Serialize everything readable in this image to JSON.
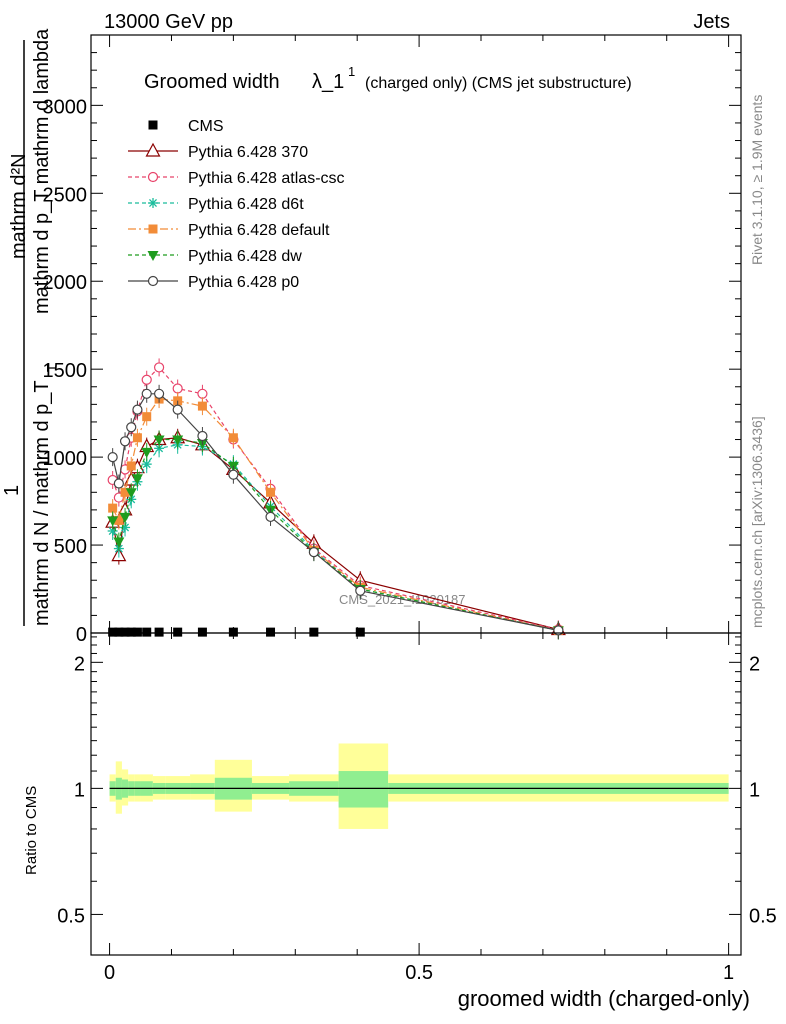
{
  "header": {
    "left": "13000 GeV pp",
    "right": "Jets"
  },
  "side": {
    "rivet": "Rivet 3.1.10, ≥ 1.9M events",
    "mcplots": "mcplots.cern.ch [arXiv:1306.3436]"
  },
  "chart_data": [
    {
      "type": "line",
      "title_main": "Groomed width",
      "title_lambda": "λ_1",
      "title_sup": "1",
      "title_tail": "(charged only) (CMS jet substructure)",
      "ylabel_top": "mathrm d²N",
      "ylabel_mid": "mathrm d p_T mathrm d lambda",
      "ylabel_one": "1",
      "ylabel_bottom": "mathrm d N / mathrm d p_T",
      "ylabel_t": "T",
      "watermark": "CMS_2021_I1920187",
      "xlim": [
        -0.03,
        1.02
      ],
      "ylim": [
        0,
        3400
      ],
      "yticks": [
        {
          "v": 0,
          "label": "0"
        },
        {
          "v": 500,
          "label": "500"
        },
        {
          "v": 1000,
          "label": "1000"
        },
        {
          "v": 1500,
          "label": "1500"
        },
        {
          "v": 2000,
          "label": "2000"
        },
        {
          "v": 2500,
          "label": "2500"
        },
        {
          "v": 3000,
          "label": "3000"
        }
      ],
      "x": [
        0.005,
        0.015,
        0.025,
        0.035,
        0.045,
        0.06,
        0.08,
        0.11,
        0.15,
        0.2,
        0.26,
        0.33,
        0.405,
        0.725
      ],
      "legend_position": "top-left",
      "series": [
        {
          "name": "CMS",
          "color": "#000000",
          "marker": "square",
          "dash": "",
          "values": [
            5,
            5,
            5,
            5,
            5,
            5,
            5,
            5,
            5,
            5,
            5,
            5,
            5,
            null
          ]
        },
        {
          "name": "Pythia 6.428 370",
          "color": "#8b0000",
          "marker": "triangle-open",
          "dash": "",
          "values": [
            630,
            440,
            700,
            870,
            940,
            1060,
            1100,
            1110,
            1070,
            930,
            740,
            510,
            300,
            20
          ]
        },
        {
          "name": "Pythia 6.428 atlas-csc",
          "color": "#e8436a",
          "marker": "circle-open",
          "dash": "4,3",
          "values": [
            870,
            770,
            930,
            1110,
            1260,
            1440,
            1510,
            1390,
            1360,
            1100,
            820,
            480,
            270,
            20
          ]
        },
        {
          "name": "Pythia 6.428 d6t",
          "color": "#1abc9c",
          "marker": "star",
          "dash": "4,3",
          "values": [
            580,
            480,
            600,
            760,
            860,
            960,
            1050,
            1070,
            1060,
            960,
            720,
            470,
            250,
            15
          ]
        },
        {
          "name": "Pythia 6.428 default",
          "color": "#f28c38",
          "marker": "square",
          "dash": "8,3,2,3",
          "values": [
            710,
            640,
            800,
            950,
            1110,
            1230,
            1330,
            1320,
            1290,
            1110,
            800,
            470,
            260,
            15
          ]
        },
        {
          "name": "Pythia 6.428 dw",
          "color": "#1e9c1e",
          "marker": "triangle-down",
          "dash": "4,3",
          "values": [
            640,
            520,
            660,
            800,
            880,
            1030,
            1100,
            1100,
            1080,
            950,
            700,
            460,
            250,
            15
          ]
        },
        {
          "name": "Pythia 6.428 p0",
          "color": "#444444",
          "marker": "circle-open",
          "dash": "",
          "values": [
            1000,
            850,
            1090,
            1170,
            1270,
            1360,
            1360,
            1270,
            1120,
            900,
            660,
            460,
            240,
            15
          ]
        }
      ]
    },
    {
      "type": "area",
      "ylabel": "Ratio to CMS",
      "xlabel": "groomed width (charged-only)",
      "xlim": [
        -0.03,
        1.02
      ],
      "ylim": [
        0.4,
        2.35
      ],
      "log_y": true,
      "xticks": [
        {
          "v": 0,
          "label": "0"
        },
        {
          "v": 0.5,
          "label": "0.5"
        },
        {
          "v": 1,
          "label": "1"
        }
      ],
      "yticks": [
        {
          "v": 0.5,
          "label": "0.5"
        },
        {
          "v": 1,
          "label": "1"
        },
        {
          "v": 2,
          "label": "2"
        }
      ],
      "bin_edges": [
        0.0,
        0.01,
        0.02,
        0.03,
        0.04,
        0.05,
        0.07,
        0.09,
        0.13,
        0.17,
        0.23,
        0.29,
        0.37,
        0.45,
        1.0
      ],
      "band_inner": {
        "color": "#90ee90",
        "lo": [
          0.96,
          0.94,
          0.95,
          0.96,
          0.96,
          0.96,
          0.97,
          0.97,
          0.97,
          0.94,
          0.97,
          0.96,
          0.9,
          0.97
        ],
        "hi": [
          1.04,
          1.06,
          1.05,
          1.04,
          1.04,
          1.04,
          1.03,
          1.03,
          1.03,
          1.06,
          1.03,
          1.04,
          1.1,
          1.03
        ]
      },
      "band_outer": {
        "color": "#ffff99",
        "lo": [
          0.93,
          0.87,
          0.91,
          0.93,
          0.93,
          0.93,
          0.94,
          0.94,
          0.94,
          0.88,
          0.94,
          0.93,
          0.8,
          0.93
        ],
        "hi": [
          1.08,
          1.16,
          1.11,
          1.08,
          1.08,
          1.08,
          1.07,
          1.07,
          1.08,
          1.17,
          1.07,
          1.08,
          1.28,
          1.08
        ]
      },
      "reference": 1
    }
  ]
}
